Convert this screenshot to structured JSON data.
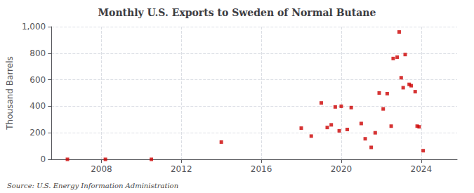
{
  "chart_data": {
    "type": "scatter",
    "title": "Monthly U.S. Exports to Sweden of Normal Butane",
    "ylabel": "Thousand Barrels",
    "annotation": "Source: U.S. Energy Information Administration",
    "color": "#cc0000",
    "marker": "square",
    "grid": true,
    "xlim": [
      2005.5,
      2025.8
    ],
    "ylim": [
      0,
      1000
    ],
    "xticks": [
      2008,
      2012,
      2016,
      2020,
      2024
    ],
    "yticks": [
      0,
      200,
      400,
      600,
      800,
      {
        "value": 1000,
        "label": "1,000"
      }
    ],
    "x": [
      2006.3,
      2008.2,
      2010.5,
      2014.0,
      2018.0,
      2018.5,
      2019.0,
      2019.3,
      2019.5,
      2019.7,
      2019.9,
      2020.0,
      2020.3,
      2020.5,
      2021.0,
      2021.2,
      2021.5,
      2021.7,
      2021.9,
      2022.1,
      2022.3,
      2022.5,
      2022.6,
      2022.8,
      2022.9,
      2023.0,
      2023.1,
      2023.2,
      2023.4,
      2023.5,
      2023.7,
      2023.8,
      2023.9,
      2024.1
    ],
    "values": [
      0,
      0,
      0,
      130,
      235,
      175,
      425,
      240,
      260,
      395,
      215,
      400,
      225,
      390,
      270,
      155,
      90,
      200,
      500,
      380,
      495,
      250,
      760,
      770,
      960,
      615,
      540,
      790,
      565,
      555,
      510,
      250,
      245,
      65
    ]
  }
}
